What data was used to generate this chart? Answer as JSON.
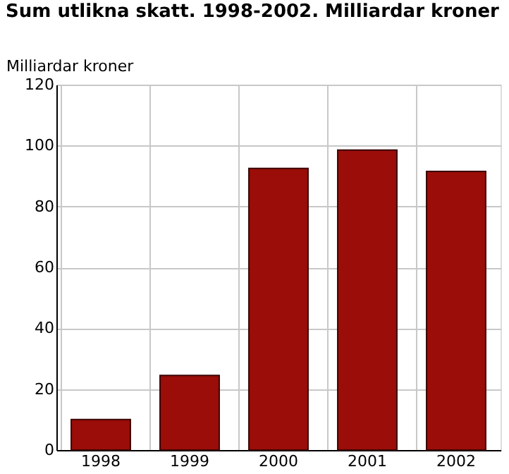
{
  "chart_data": {
    "type": "bar",
    "title": "Sum utlikna skatt.  1998-2002. Milliardar kroner",
    "ylabel": "Milliardar kroner",
    "categories": [
      "1998",
      "1999",
      "2000",
      "2001",
      "2002"
    ],
    "values": [
      10,
      24.5,
      92.5,
      98.5,
      91.5
    ],
    "color": "#9a0d08",
    "ylim": [
      0,
      120
    ],
    "yticks": [
      0,
      20,
      40,
      60,
      80,
      100,
      120
    ],
    "grid": true
  }
}
